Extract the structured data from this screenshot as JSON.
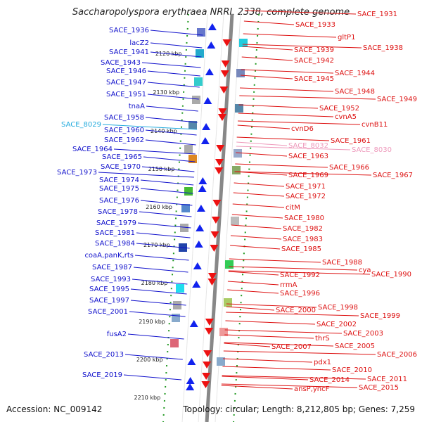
{
  "title": "Saccharopolyspora erythraea NRRL 2338, complete genome",
  "footer": {
    "accession": "Accession: NC_009142",
    "summary": "Topology: circular; Length: 8,212,805 bp; Genes: 7,259"
  },
  "colors": {
    "left_label": "#1111cc",
    "left_special": "#22aadd",
    "right_label": "#dd1111",
    "right_special": "#ee99bb",
    "backbone": "#888888",
    "tick": "#229922",
    "forward_gene": "#1122ee",
    "reverse_gene": "#ee1111"
  },
  "scale_labels": [
    "2120 kbp",
    "2130 kbp",
    "2140 kbp",
    "2150 kbp",
    "2160 kbp",
    "2170 kbp",
    "2180 kbp",
    "2190 kbp",
    "2200 kbp",
    "2210 kbp"
  ],
  "left_labels": [
    "SACE_1936",
    "lacZ2",
    "SACE_1941",
    "SACE_1943",
    "SACE_1946",
    "SACE_1947",
    "SACE_1951",
    "tnaA",
    "SACE_1958",
    "SACE_8029",
    "SACE_1960",
    "SACE_1962",
    "SACE_1964",
    "SACE_1965",
    "SACE_1970",
    "SACE_1973",
    "SACE_1974",
    "SACE_1975",
    "SACE_1976",
    "SACE_1978",
    "SACE_1979",
    "SACE_1981",
    "SACE_1984",
    "coaA,panK,rts",
    "SACE_1987",
    "SACE_1993",
    "SACE_1995",
    "SACE_1997",
    "SACE_2001",
    "fusA2",
    "SACE_2013",
    "SACE_2019"
  ],
  "right_labels": [
    "SACE_1931",
    "SACE_1933",
    "gltP1",
    "SACE_1938",
    "SACE_1939",
    "SACE_1942",
    "SACE_1944",
    "SACE_1945",
    "SACE_1948",
    "SACE_1949",
    "SACE_1952",
    "cvnA5",
    "cvnB11",
    "cvnD6",
    "SACE_1961",
    "SACE_8032",
    "SACE_8030",
    "SACE_1963",
    "SACE_1966",
    "SACE_1969",
    "SACE_1967",
    "SACE_1971",
    "SACE_1972",
    "citM",
    "SACE_1980",
    "SACE_1982",
    "SACE_1983",
    "SACE_1985",
    "SACE_1988",
    "cya",
    "SACE_1990",
    "SACE_1992",
    "rrmA",
    "SACE_1996",
    "SACE_1998",
    "SACE_2000",
    "SACE_1999",
    "SACE_2002",
    "thrS",
    "SACE_2003",
    "SACE_2005",
    "SACE_2007",
    "SACE_2006",
    "pdx1",
    "SACE_2010",
    "SACE_2011",
    "SACE_2014",
    "SACE_2015",
    "ansP,yncF"
  ]
}
